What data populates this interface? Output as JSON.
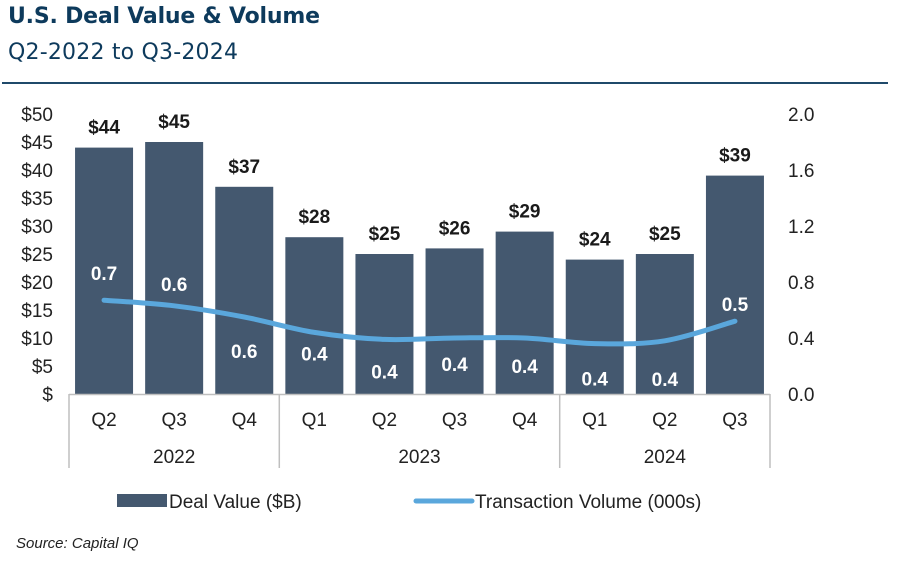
{
  "header": {
    "title": "U.S. Deal Value & Volume",
    "subtitle": "Q2-2022 to Q3-2024"
  },
  "footer": {
    "source": "Source: Capital IQ"
  },
  "colors": {
    "title": "#0d3a5c",
    "bar": "#44586f",
    "line": "#5aa7dc",
    "axis": "#bfbfbf"
  },
  "chart_data": {
    "type": "bar",
    "title": "U.S. Deal Value & Volume",
    "subtitle": "Q2-2022 to Q3-2024",
    "categories": [
      "Q2",
      "Q3",
      "Q4",
      "Q1",
      "Q2",
      "Q3",
      "Q4",
      "Q1",
      "Q2",
      "Q3"
    ],
    "category_groups": [
      {
        "label": "2022",
        "span": 3
      },
      {
        "label": "2023",
        "span": 4
      },
      {
        "label": "2024",
        "span": 3
      }
    ],
    "series": [
      {
        "name": "Deal Value ($B)",
        "type": "bar",
        "axis": "left",
        "values": [
          44,
          45,
          37,
          28,
          25,
          26,
          29,
          24,
          25,
          39
        ],
        "labels": [
          "$44",
          "$45",
          "$37",
          "$28",
          "$25",
          "$26",
          "$29",
          "$24",
          "$25",
          "$39"
        ]
      },
      {
        "name": "Transaction Volume (000s)",
        "type": "line",
        "axis": "right",
        "values": [
          0.67,
          0.63,
          0.55,
          0.44,
          0.39,
          0.4,
          0.4,
          0.36,
          0.38,
          0.52
        ],
        "labels": [
          "0.7",
          "0.6",
          "0.6",
          "0.4",
          "0.4",
          "0.4",
          "0.4",
          "0.4",
          "0.4",
          "0.5"
        ]
      }
    ],
    "y_left": {
      "ylim": [
        0,
        50
      ],
      "ticks": [
        0,
        5,
        10,
        15,
        20,
        25,
        30,
        35,
        40,
        45,
        50
      ],
      "tick_labels": [
        "$",
        "$5",
        "$10",
        "$15",
        "$20",
        "$25",
        "$30",
        "$35",
        "$40",
        "$45",
        "$50"
      ]
    },
    "y_right": {
      "ylim": [
        0,
        2.0
      ],
      "ticks": [
        0,
        0.4,
        0.8,
        1.2,
        1.6,
        2.0
      ],
      "tick_labels": [
        "0.0",
        "0.4",
        "0.8",
        "1.2",
        "1.6",
        "2.0"
      ]
    },
    "xlabel": "",
    "ylabel": "",
    "grid": false,
    "legend": {
      "position": "bottom",
      "entries": [
        "Deal Value ($B)",
        "Transaction Volume (000s)"
      ]
    }
  }
}
